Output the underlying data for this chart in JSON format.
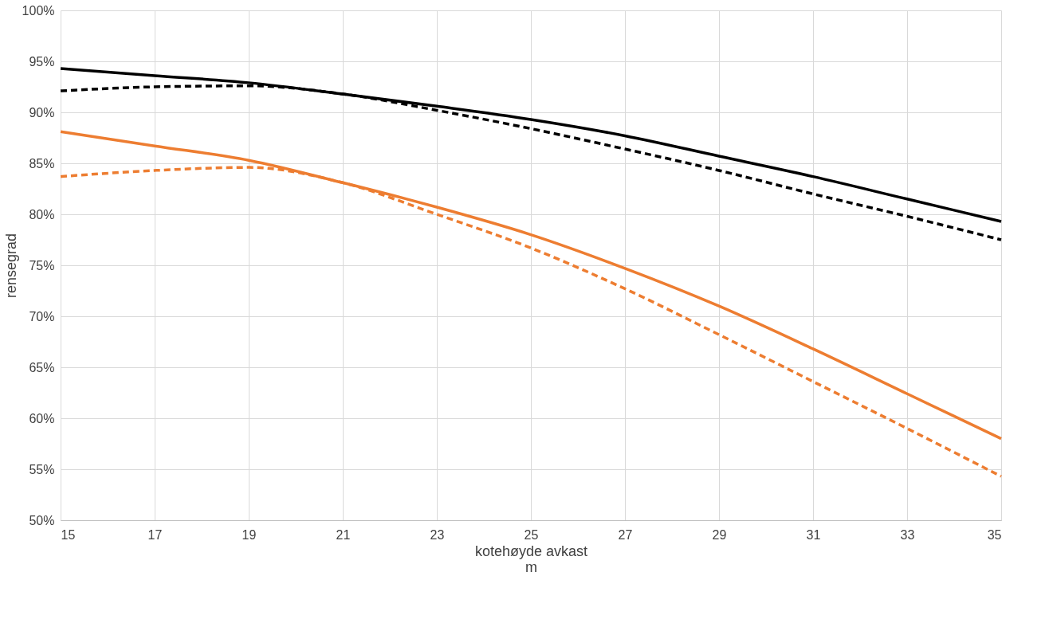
{
  "chart_data": {
    "type": "line",
    "xlabel": "kotehøyde avkast\nm",
    "ylabel": "rensegrad",
    "x": [
      15,
      17,
      19,
      21,
      23,
      25,
      27,
      29,
      31,
      33,
      35
    ],
    "series": [
      {
        "color": "#000000",
        "line_style": "solid",
        "values": [
          94.3,
          93.6,
          92.9,
          91.8,
          90.6,
          89.3,
          87.7,
          85.7,
          83.7,
          81.5,
          79.3
        ]
      },
      {
        "color": "#000000",
        "line_style": "dashed",
        "values": [
          92.1,
          92.5,
          92.6,
          91.8,
          90.2,
          88.4,
          86.4,
          84.3,
          82.0,
          79.8,
          77.5
        ]
      },
      {
        "color": "#ed7d31",
        "line_style": "solid",
        "values": [
          88.1,
          86.7,
          85.3,
          83.1,
          80.7,
          78.0,
          74.7,
          71.0,
          66.8,
          62.4,
          58.0
        ]
      },
      {
        "color": "#ed7d31",
        "line_style": "dashed",
        "values": [
          83.7,
          84.3,
          84.6,
          83.1,
          80.0,
          76.7,
          72.7,
          68.2,
          63.6,
          59.0,
          54.3
        ]
      }
    ],
    "xlim": [
      15,
      35
    ],
    "xticks": [
      15,
      17,
      19,
      21,
      23,
      25,
      27,
      29,
      31,
      33,
      35
    ],
    "ylim": [
      50,
      100
    ],
    "yticks": [
      {
        "value": 50,
        "label": "50%"
      },
      {
        "value": 55,
        "label": "55%"
      },
      {
        "value": 60,
        "label": "60%"
      },
      {
        "value": 65,
        "label": "65%"
      },
      {
        "value": 70,
        "label": "70%"
      },
      {
        "value": 75,
        "label": "75%"
      },
      {
        "value": 80,
        "label": "80%"
      },
      {
        "value": 85,
        "label": "85%"
      },
      {
        "value": 90,
        "label": "90%"
      },
      {
        "value": 95,
        "label": "95%"
      },
      {
        "value": 100,
        "label": "100%"
      }
    ],
    "grid": true,
    "marker": "none"
  }
}
